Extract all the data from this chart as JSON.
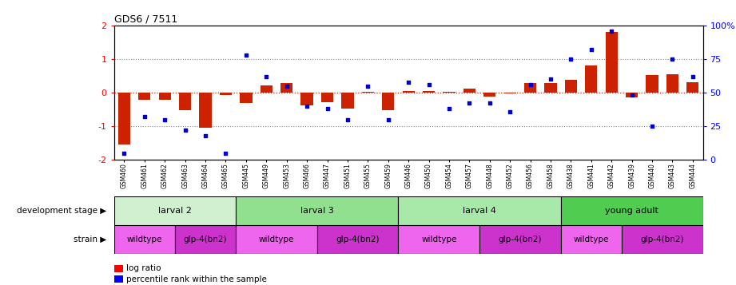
{
  "title": "GDS6 / 7511",
  "samples": [
    "GSM460",
    "GSM461",
    "GSM462",
    "GSM463",
    "GSM464",
    "GSM465",
    "GSM445",
    "GSM449",
    "GSM453",
    "GSM466",
    "GSM447",
    "GSM451",
    "GSM455",
    "GSM459",
    "GSM446",
    "GSM450",
    "GSM454",
    "GSM457",
    "GSM448",
    "GSM452",
    "GSM456",
    "GSM458",
    "GSM438",
    "GSM441",
    "GSM442",
    "GSM439",
    "GSM440",
    "GSM443",
    "GSM444"
  ],
  "log_ratio": [
    -1.55,
    -0.22,
    -0.22,
    -0.52,
    -1.05,
    -0.08,
    -0.32,
    0.22,
    0.28,
    -0.38,
    -0.28,
    -0.48,
    0.02,
    -0.52,
    0.05,
    0.05,
    0.02,
    0.12,
    -0.12,
    -0.03,
    0.28,
    0.28,
    0.38,
    0.82,
    1.82,
    -0.15,
    0.52,
    0.55,
    0.32
  ],
  "percentile": [
    5,
    32,
    30,
    22,
    18,
    5,
    78,
    62,
    55,
    40,
    38,
    30,
    55,
    30,
    58,
    56,
    38,
    42,
    42,
    36,
    56,
    60,
    75,
    82,
    96,
    48,
    25,
    75,
    62
  ],
  "dev_stage_groups": [
    {
      "label": "larval 2",
      "start": 0,
      "end": 6,
      "color": "#d0f0d0"
    },
    {
      "label": "larval 3",
      "start": 6,
      "end": 14,
      "color": "#90e090"
    },
    {
      "label": "larval 4",
      "start": 14,
      "end": 22,
      "color": "#a8e8a8"
    },
    {
      "label": "young adult",
      "start": 22,
      "end": 29,
      "color": "#50cc50"
    }
  ],
  "strain_groups": [
    {
      "label": "wildtype",
      "start": 0,
      "end": 3,
      "color": "#ee66ee"
    },
    {
      "label": "glp-4(bn2)",
      "start": 3,
      "end": 6,
      "color": "#cc33cc"
    },
    {
      "label": "wildtype",
      "start": 6,
      "end": 10,
      "color": "#ee66ee"
    },
    {
      "label": "glp-4(bn2)",
      "start": 10,
      "end": 14,
      "color": "#cc33cc"
    },
    {
      "label": "wildtype",
      "start": 14,
      "end": 18,
      "color": "#ee66ee"
    },
    {
      "label": "glp-4(bn2)",
      "start": 18,
      "end": 22,
      "color": "#cc33cc"
    },
    {
      "label": "wildtype",
      "start": 22,
      "end": 25,
      "color": "#ee66ee"
    },
    {
      "label": "glp-4(bn2)",
      "start": 25,
      "end": 29,
      "color": "#cc33cc"
    }
  ],
  "ylim_left": [
    -2,
    2
  ],
  "ylim_right": [
    0,
    100
  ],
  "yticks_left": [
    -2,
    -1,
    0,
    1,
    2
  ],
  "yticks_right": [
    0,
    25,
    50,
    75,
    100
  ],
  "ytick_labels_right": [
    "0",
    "25",
    "50",
    "75",
    "100%"
  ],
  "bar_color": "#cc2200",
  "dot_color": "#0000cc",
  "background_color": "#ffffff",
  "grid_color": "#888888",
  "hline_color": "#cc2200"
}
